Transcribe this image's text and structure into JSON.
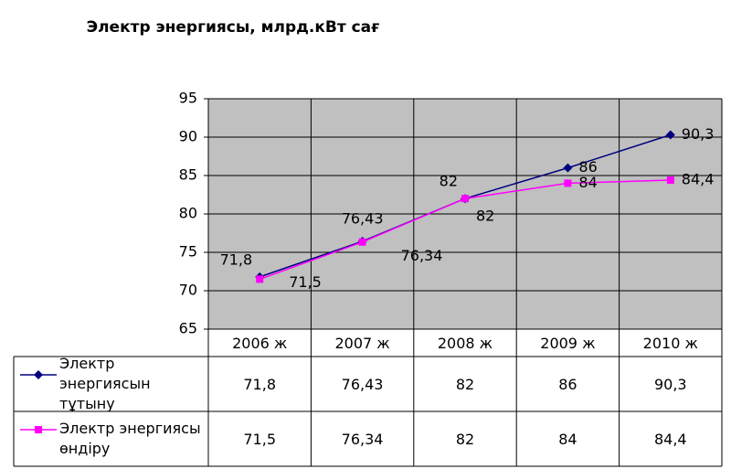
{
  "chart_data": {
    "type": "line",
    "title": "Электр энергиясы, млрд.кВт сағ",
    "categories": [
      "2006 ж",
      "2007 ж",
      "2008 ж",
      "2009 ж",
      "2010 ж"
    ],
    "series": [
      {
        "name": "Электр энергиясын тұтыну",
        "color": "#000080",
        "marker": "diamond",
        "values": [
          71.8,
          76.43,
          82,
          86,
          90.3
        ],
        "value_labels": [
          "71,8",
          "76,43",
          "82",
          "86",
          "90,3"
        ]
      },
      {
        "name": "Электр энергиясы өндіру",
        "color": "#ff00ff",
        "marker": "square",
        "values": [
          71.5,
          76.34,
          82,
          84,
          84.4
        ],
        "value_labels": [
          "71,5",
          "76,34",
          "82",
          "84",
          "84,4"
        ]
      }
    ],
    "ylim": [
      65,
      95
    ],
    "yticks": [
      65,
      70,
      75,
      80,
      85,
      90,
      95
    ],
    "grid": true,
    "data_table": true
  }
}
